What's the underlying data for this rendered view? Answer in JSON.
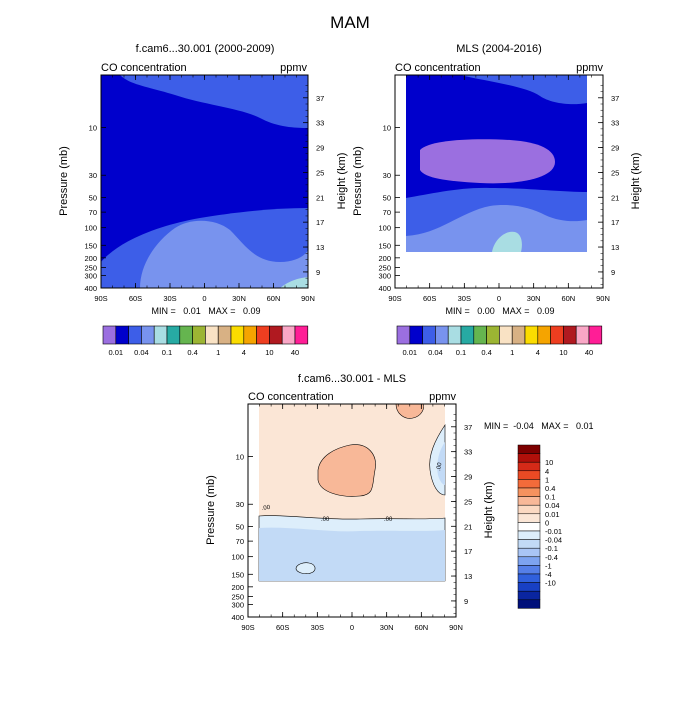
{
  "figure_title": "MAM",
  "colors": {
    "model_palette": [
      "#9b6fe0",
      "#0000cc",
      "#3d5ee8",
      "#7893ee",
      "#a9dde3",
      "#27aaa3",
      "#65b54f",
      "#9cb533",
      "#f9e2c4",
      "#d8b184",
      "#fbdc00",
      "#f5a400",
      "#ee3e20",
      "#b01920",
      "#f9a7c6",
      "#ff1e96"
    ],
    "diff_palette": [
      "#7d0000",
      "#b0100a",
      "#d52a18",
      "#ea4a24",
      "#f36b3a",
      "#f5925f",
      "#f8b898",
      "#fbd9c2",
      "#fbe6d6",
      "#ffffff",
      "#ddeefb",
      "#c2daf6",
      "#a9c5f5",
      "#7da3f0",
      "#557fe8",
      "#3060dd",
      "#1840c4",
      "#0a25a0",
      "#000f7a"
    ]
  },
  "chart_data": [
    {
      "type": "contour",
      "title": "f.cam6...30.001 (2000-2009)",
      "left_label": "CO concentration",
      "right_label": "ppmv",
      "xlabel": "",
      "ylabel": "Pressure (mb)",
      "y2label": "Height (km)",
      "x_ticks": [
        "90S",
        "60S",
        "30S",
        "0",
        "30N",
        "60N",
        "90N"
      ],
      "y_ticks": [
        "10",
        "30",
        "50",
        "70",
        "100",
        "150",
        "200",
        "250",
        "300",
        "400"
      ],
      "y2_ticks": [
        "37",
        "33",
        "29",
        "25",
        "21",
        "17",
        "13",
        "9"
      ],
      "x_range": [
        -90,
        90
      ],
      "y_range_mb": [
        400,
        3
      ],
      "stats": "MIN =   0.01   MAX =   0.09",
      "min": 0.01,
      "max": 0.09,
      "colorbar": {
        "orientation": "horizontal",
        "labels": [
          "0.01",
          "0.04",
          "0.1",
          "0.4",
          "1",
          "4",
          "10",
          "40"
        ]
      }
    },
    {
      "type": "contour",
      "title": "MLS (2004-2016)",
      "left_label": "CO concentration",
      "right_label": "ppmv",
      "xlabel": "",
      "ylabel": "Pressure (mb)",
      "y2label": "Height (km)",
      "x_ticks": [
        "90S",
        "60S",
        "30S",
        "0",
        "30N",
        "60N",
        "90N"
      ],
      "y_ticks": [
        "10",
        "30",
        "50",
        "70",
        "100",
        "150",
        "200",
        "250",
        "300",
        "400"
      ],
      "y2_ticks": [
        "37",
        "33",
        "29",
        "25",
        "21",
        "17",
        "13",
        "9"
      ],
      "x_range": [
        -90,
        90
      ],
      "y_range_mb": [
        400,
        3
      ],
      "stats": "MIN =   0.00   MAX =   0.09",
      "min": 0.0,
      "max": 0.09,
      "colorbar": {
        "orientation": "horizontal",
        "labels": [
          "0.01",
          "0.04",
          "0.1",
          "0.4",
          "1",
          "4",
          "10",
          "40"
        ]
      }
    },
    {
      "type": "contour",
      "title": "f.cam6...30.001 - MLS",
      "left_label": "CO concentration",
      "right_label": "ppmv",
      "xlabel": "",
      "ylabel": "Pressure (mb)",
      "y2label": "Height (km)",
      "x_ticks": [
        "90S",
        "60S",
        "30S",
        "0",
        "30N",
        "60N",
        "90N"
      ],
      "y_ticks": [
        "10",
        "30",
        "50",
        "70",
        "100",
        "150",
        "200",
        "250",
        "300",
        "400"
      ],
      "y2_ticks": [
        "37",
        "33",
        "29",
        "25",
        "21",
        "17",
        "13",
        "9"
      ],
      "x_range": [
        -90,
        90
      ],
      "y_range_mb": [
        400,
        3
      ],
      "stats": "MIN =  -0.04   MAX =   0.01",
      "min": -0.04,
      "max": 0.01,
      "contour_labels": [
        ".00",
        ".00",
        ".00",
        ".00"
      ],
      "colorbar": {
        "orientation": "vertical",
        "labels": [
          "10",
          "4",
          "1",
          "0.4",
          "0.1",
          "0.04",
          "0.01",
          "0",
          "-0.01",
          "-0.04",
          "-0.1",
          "-0.4",
          "-1",
          "-4",
          "-10"
        ]
      }
    }
  ]
}
